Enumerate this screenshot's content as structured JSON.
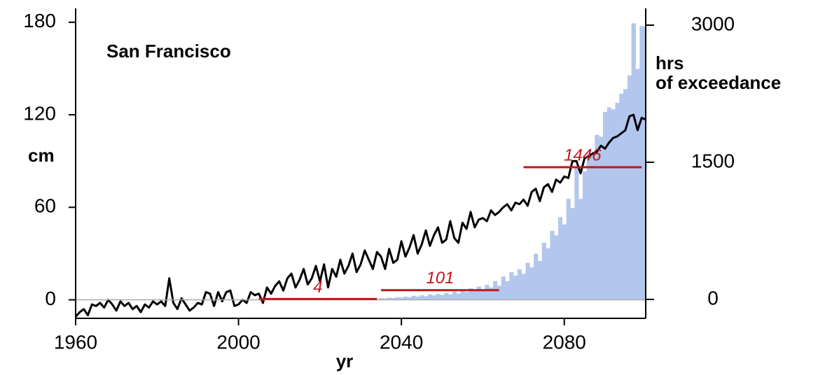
{
  "chart_data": {
    "type": "line-bar",
    "title": "San Francisco",
    "y_label": "cm",
    "x_label": "yr",
    "y2_label": [
      "hrs",
      "of exceedance"
    ],
    "xlim": [
      1960,
      2100
    ],
    "xticks": [
      1960,
      2000,
      2040,
      2080
    ],
    "ylim": [
      -12,
      189
    ],
    "yticks": [
      0,
      60,
      120,
      180
    ],
    "y2lim": [
      -207,
      3183
    ],
    "y2ticks": [
      0,
      1500,
      3000
    ],
    "zero_line_color": "#aaaaaa",
    "series": [
      {
        "type": "line",
        "color": "#000000",
        "x": [
          1960,
          1961,
          1962,
          1963,
          1964,
          1965,
          1966,
          1967,
          1968,
          1969,
          1970,
          1971,
          1972,
          1973,
          1974,
          1975,
          1976,
          1977,
          1978,
          1979,
          1980,
          1981,
          1982,
          1983,
          1984,
          1985,
          1986,
          1987,
          1988,
          1989,
          1990,
          1991,
          1992,
          1993,
          1994,
          1995,
          1996,
          1997,
          1998,
          1999,
          2000,
          2001,
          2002,
          2003,
          2004,
          2005,
          2006,
          2007,
          2008,
          2009,
          2010,
          2011,
          2012,
          2013,
          2014,
          2015,
          2016,
          2017,
          2018,
          2019,
          2020,
          2021,
          2022,
          2023,
          2024,
          2025,
          2026,
          2027,
          2028,
          2029,
          2030,
          2031,
          2032,
          2033,
          2034,
          2035,
          2036,
          2037,
          2038,
          2039,
          2040,
          2041,
          2042,
          2043,
          2044,
          2045,
          2046,
          2047,
          2048,
          2049,
          2050,
          2051,
          2052,
          2053,
          2054,
          2055,
          2056,
          2057,
          2058,
          2059,
          2060,
          2061,
          2062,
          2063,
          2064,
          2065,
          2066,
          2067,
          2068,
          2069,
          2070,
          2071,
          2072,
          2073,
          2074,
          2075,
          2076,
          2077,
          2078,
          2079,
          2080,
          2081,
          2082,
          2083,
          2084,
          2085,
          2086,
          2087,
          2088,
          2089,
          2090,
          2091,
          2092,
          2093,
          2094,
          2095,
          2096,
          2097,
          2098,
          2099,
          2100
        ],
        "values": [
          -11,
          -8,
          -6,
          -10,
          -3,
          -4,
          -2,
          -5,
          0,
          -3,
          -7,
          -1,
          -4,
          -2,
          -6,
          -4,
          -8,
          -3,
          -5,
          -1,
          -3,
          -1,
          -4,
          14,
          -2,
          -6,
          1,
          -3,
          -7,
          -5,
          -2,
          -3,
          5,
          4,
          -4,
          5,
          -1,
          5,
          6,
          -4,
          -3,
          0,
          -2,
          5,
          3,
          4,
          -2,
          8,
          4,
          9,
          12,
          6,
          14,
          17,
          8,
          13,
          20,
          10,
          14,
          22,
          12,
          23,
          8,
          20,
          15,
          26,
          17,
          22,
          30,
          18,
          23,
          32,
          26,
          20,
          31,
          28,
          20,
          33,
          24,
          26,
          38,
          28,
          34,
          42,
          30,
          36,
          45,
          35,
          42,
          47,
          37,
          39,
          51,
          40,
          37,
          50,
          46,
          57,
          47,
          52,
          53,
          51,
          58,
          55,
          57,
          60,
          62,
          58,
          63,
          62,
          65,
          61,
          70,
          72,
          64,
          73,
          75,
          70,
          78,
          76,
          80,
          79,
          90,
          90,
          82,
          92,
          93,
          95,
          96,
          100,
          98,
          102,
          105,
          106,
          108,
          110,
          119,
          120,
          110,
          118,
          117
        ]
      },
      {
        "type": "bar",
        "axis": "y2",
        "color": "#b3c6ee",
        "x": [
          2034,
          2035,
          2036,
          2037,
          2038,
          2039,
          2040,
          2041,
          2042,
          2043,
          2044,
          2045,
          2046,
          2047,
          2048,
          2049,
          2050,
          2051,
          2052,
          2053,
          2054,
          2055,
          2056,
          2057,
          2058,
          2059,
          2060,
          2061,
          2062,
          2063,
          2064,
          2065,
          2066,
          2067,
          2068,
          2069,
          2070,
          2071,
          2072,
          2073,
          2074,
          2075,
          2076,
          2077,
          2078,
          2079,
          2080,
          2081,
          2082,
          2083,
          2084,
          2085,
          2086,
          2087,
          2088,
          2089,
          2090,
          2091,
          2092,
          2093,
          2094,
          2095,
          2096,
          2097,
          2098,
          2099,
          2100
        ],
        "values": [
          5,
          15,
          10,
          20,
          15,
          25,
          20,
          30,
          25,
          40,
          30,
          45,
          35,
          55,
          45,
          60,
          50,
          70,
          55,
          85,
          65,
          100,
          80,
          120,
          95,
          140,
          110,
          160,
          130,
          200,
          150,
          250,
          200,
          300,
          260,
          330,
          280,
          400,
          350,
          500,
          420,
          620,
          560,
          750,
          700,
          900,
          820,
          1100,
          1000,
          1450,
          1100,
          1400,
          1600,
          1600,
          1800,
          1780,
          2050,
          2100,
          2080,
          2150,
          2250,
          2300,
          2450,
          3020,
          2520,
          2990,
          2980
        ]
      }
    ],
    "period_means": {
      "color": "#c0161c",
      "axis": "y2",
      "periods": [
        {
          "start": 2005,
          "end": 2034,
          "value": 4
        },
        {
          "start": 2035,
          "end": 2064,
          "value": 101
        },
        {
          "start": 2070,
          "end": 2099,
          "value": 1446
        }
      ]
    }
  }
}
